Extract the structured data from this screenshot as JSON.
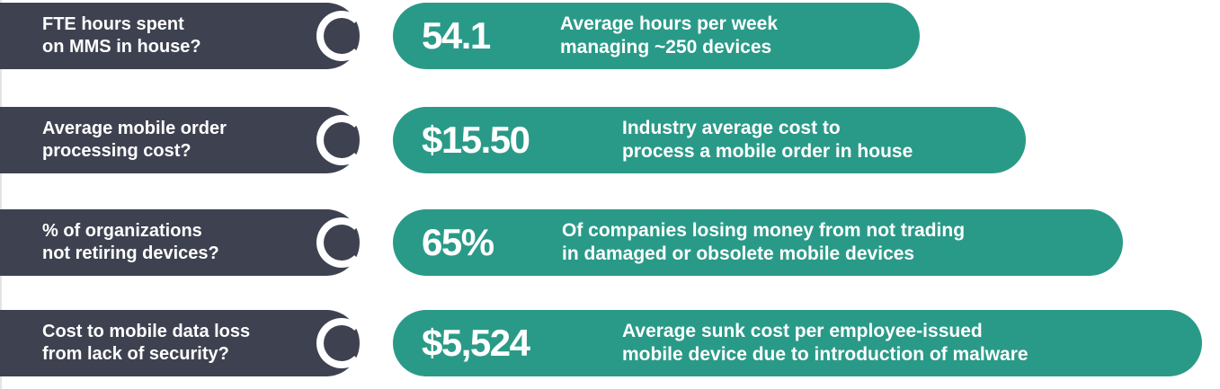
{
  "rows": [
    {
      "question": "FTE hours spent\non MMS in house?",
      "value": "54.1",
      "description": "Average hours per week\nmanaging ~250 devices"
    },
    {
      "question": "Average mobile order\nprocessing cost?",
      "value": "$15.50",
      "description": "Industry average cost to\nprocess a mobile order in house"
    },
    {
      "question": "% of organizations\nnot retiring devices?",
      "value": "65%",
      "description": "Of companies losing money from not trading\nin damaged or obsolete mobile devices"
    },
    {
      "question": "Cost to mobile data loss\nfrom lack of security?",
      "value": "$5,524",
      "description": "Average sunk cost per employee-issued\nmobile device due to introduction of malware"
    }
  ],
  "colors": {
    "question_bg": "#3e4250",
    "answer_bg": "#2a9a88",
    "text": "#ffffff"
  }
}
